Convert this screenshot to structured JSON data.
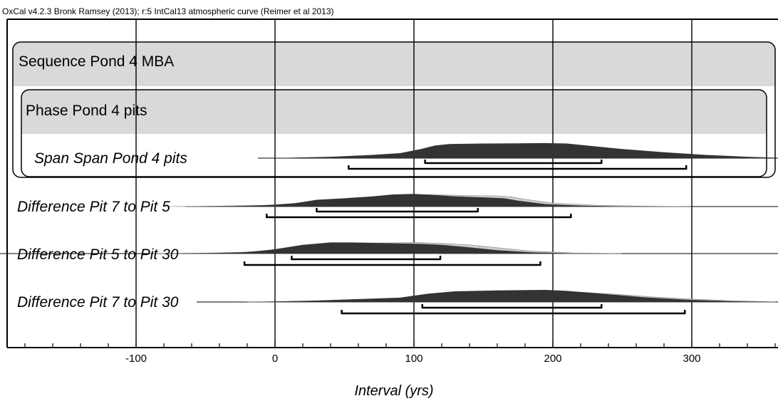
{
  "header": "OxCal v4.2.3 Bronk Ramsey (2013); r:5 IntCal13 atmospheric curve (Reimer et al 2013)",
  "chart_data": {
    "type": "area",
    "xlabel": "Interval (yrs)",
    "xlim": [
      -185,
      360
    ],
    "x_ticks": [
      -100,
      0,
      100,
      200,
      300
    ],
    "x_tick_labels": [
      "-100",
      "0",
      "100",
      "200",
      "300"
    ],
    "minor_tick_step": 20,
    "vertical_gridlines": [
      -100,
      0,
      100,
      200,
      300
    ],
    "colors": {
      "posterior": "#333333",
      "prior": "#cccccc",
      "group_fill": "#d9d9d9"
    },
    "groups": [
      {
        "label": "Sequence Pond 4 MBA",
        "type": "sequence"
      },
      {
        "label": "Phase Pond 4 pits",
        "type": "phase"
      }
    ],
    "rows": [
      {
        "label": "Span Span Pond 4 pits",
        "prior": [],
        "posterior": [
          [
            -10,
            0
          ],
          [
            10,
            2
          ],
          [
            40,
            6
          ],
          [
            70,
            14
          ],
          [
            90,
            22
          ],
          [
            105,
            40
          ],
          [
            115,
            55
          ],
          [
            125,
            62
          ],
          [
            150,
            64
          ],
          [
            175,
            65
          ],
          [
            195,
            66
          ],
          [
            210,
            64
          ],
          [
            230,
            52
          ],
          [
            250,
            40
          ],
          [
            280,
            26
          ],
          [
            310,
            14
          ],
          [
            340,
            6
          ],
          [
            360,
            2
          ]
        ],
        "range_68": [
          108,
          235
        ],
        "range_95": [
          53,
          296
        ]
      },
      {
        "label": "Difference Pit 7 to Pit 5",
        "prior": [
          [
            -80,
            0
          ],
          [
            -40,
            2
          ],
          [
            -10,
            5
          ],
          [
            10,
            10
          ],
          [
            30,
            26
          ],
          [
            50,
            32
          ],
          [
            70,
            40
          ],
          [
            90,
            48
          ],
          [
            100,
            50
          ],
          [
            120,
            48
          ],
          [
            140,
            45
          ],
          [
            160,
            44
          ],
          [
            170,
            40
          ],
          [
            180,
            30
          ],
          [
            200,
            14
          ],
          [
            230,
            6
          ],
          [
            260,
            2
          ],
          [
            300,
            0
          ]
        ],
        "posterior": [
          [
            -60,
            0
          ],
          [
            -30,
            2
          ],
          [
            -5,
            6
          ],
          [
            15,
            14
          ],
          [
            30,
            28
          ],
          [
            50,
            34
          ],
          [
            70,
            42
          ],
          [
            85,
            50
          ],
          [
            100,
            52
          ],
          [
            115,
            48
          ],
          [
            130,
            42
          ],
          [
            150,
            38
          ],
          [
            165,
            34
          ],
          [
            175,
            24
          ],
          [
            195,
            10
          ],
          [
            220,
            4
          ],
          [
            250,
            1
          ],
          [
            280,
            0
          ]
        ],
        "range_68": [
          30,
          146
        ],
        "range_95": [
          -6,
          213
        ]
      },
      {
        "label": "Difference Pit 5 to Pit 30",
        "prior": [
          [
            -90,
            0
          ],
          [
            -50,
            2
          ],
          [
            -25,
            5
          ],
          [
            0,
            14
          ],
          [
            20,
            30
          ],
          [
            40,
            40
          ],
          [
            60,
            44
          ],
          [
            80,
            44
          ],
          [
            100,
            46
          ],
          [
            120,
            42
          ],
          [
            140,
            36
          ],
          [
            160,
            24
          ],
          [
            185,
            10
          ],
          [
            215,
            3
          ],
          [
            250,
            0
          ]
        ],
        "posterior": [
          [
            -80,
            0
          ],
          [
            -45,
            2
          ],
          [
            -20,
            6
          ],
          [
            0,
            18
          ],
          [
            20,
            36
          ],
          [
            40,
            46
          ],
          [
            55,
            46
          ],
          [
            70,
            44
          ],
          [
            90,
            42
          ],
          [
            105,
            40
          ],
          [
            120,
            36
          ],
          [
            140,
            26
          ],
          [
            160,
            14
          ],
          [
            185,
            5
          ],
          [
            215,
            1
          ],
          [
            250,
            0
          ]
        ],
        "range_68": [
          12,
          119
        ],
        "range_95": [
          -22,
          191
        ]
      },
      {
        "label": "Difference Pit 7 to Pit 30",
        "prior": [
          [
            -20,
            0
          ],
          [
            10,
            2
          ],
          [
            30,
            5
          ],
          [
            60,
            10
          ],
          [
            90,
            16
          ],
          [
            110,
            30
          ],
          [
            130,
            40
          ],
          [
            160,
            44
          ],
          [
            190,
            46
          ],
          [
            210,
            44
          ],
          [
            240,
            34
          ],
          [
            270,
            22
          ],
          [
            300,
            12
          ],
          [
            330,
            5
          ],
          [
            360,
            1
          ]
        ],
        "posterior": [
          [
            -30,
            0
          ],
          [
            0,
            2
          ],
          [
            30,
            6
          ],
          [
            60,
            12
          ],
          [
            90,
            18
          ],
          [
            110,
            34
          ],
          [
            130,
            44
          ],
          [
            160,
            48
          ],
          [
            195,
            50
          ],
          [
            210,
            46
          ],
          [
            235,
            34
          ],
          [
            265,
            20
          ],
          [
            295,
            10
          ],
          [
            330,
            3
          ],
          [
            360,
            0
          ]
        ],
        "range_68": [
          106,
          235
        ],
        "range_95": [
          48,
          295
        ]
      }
    ]
  }
}
